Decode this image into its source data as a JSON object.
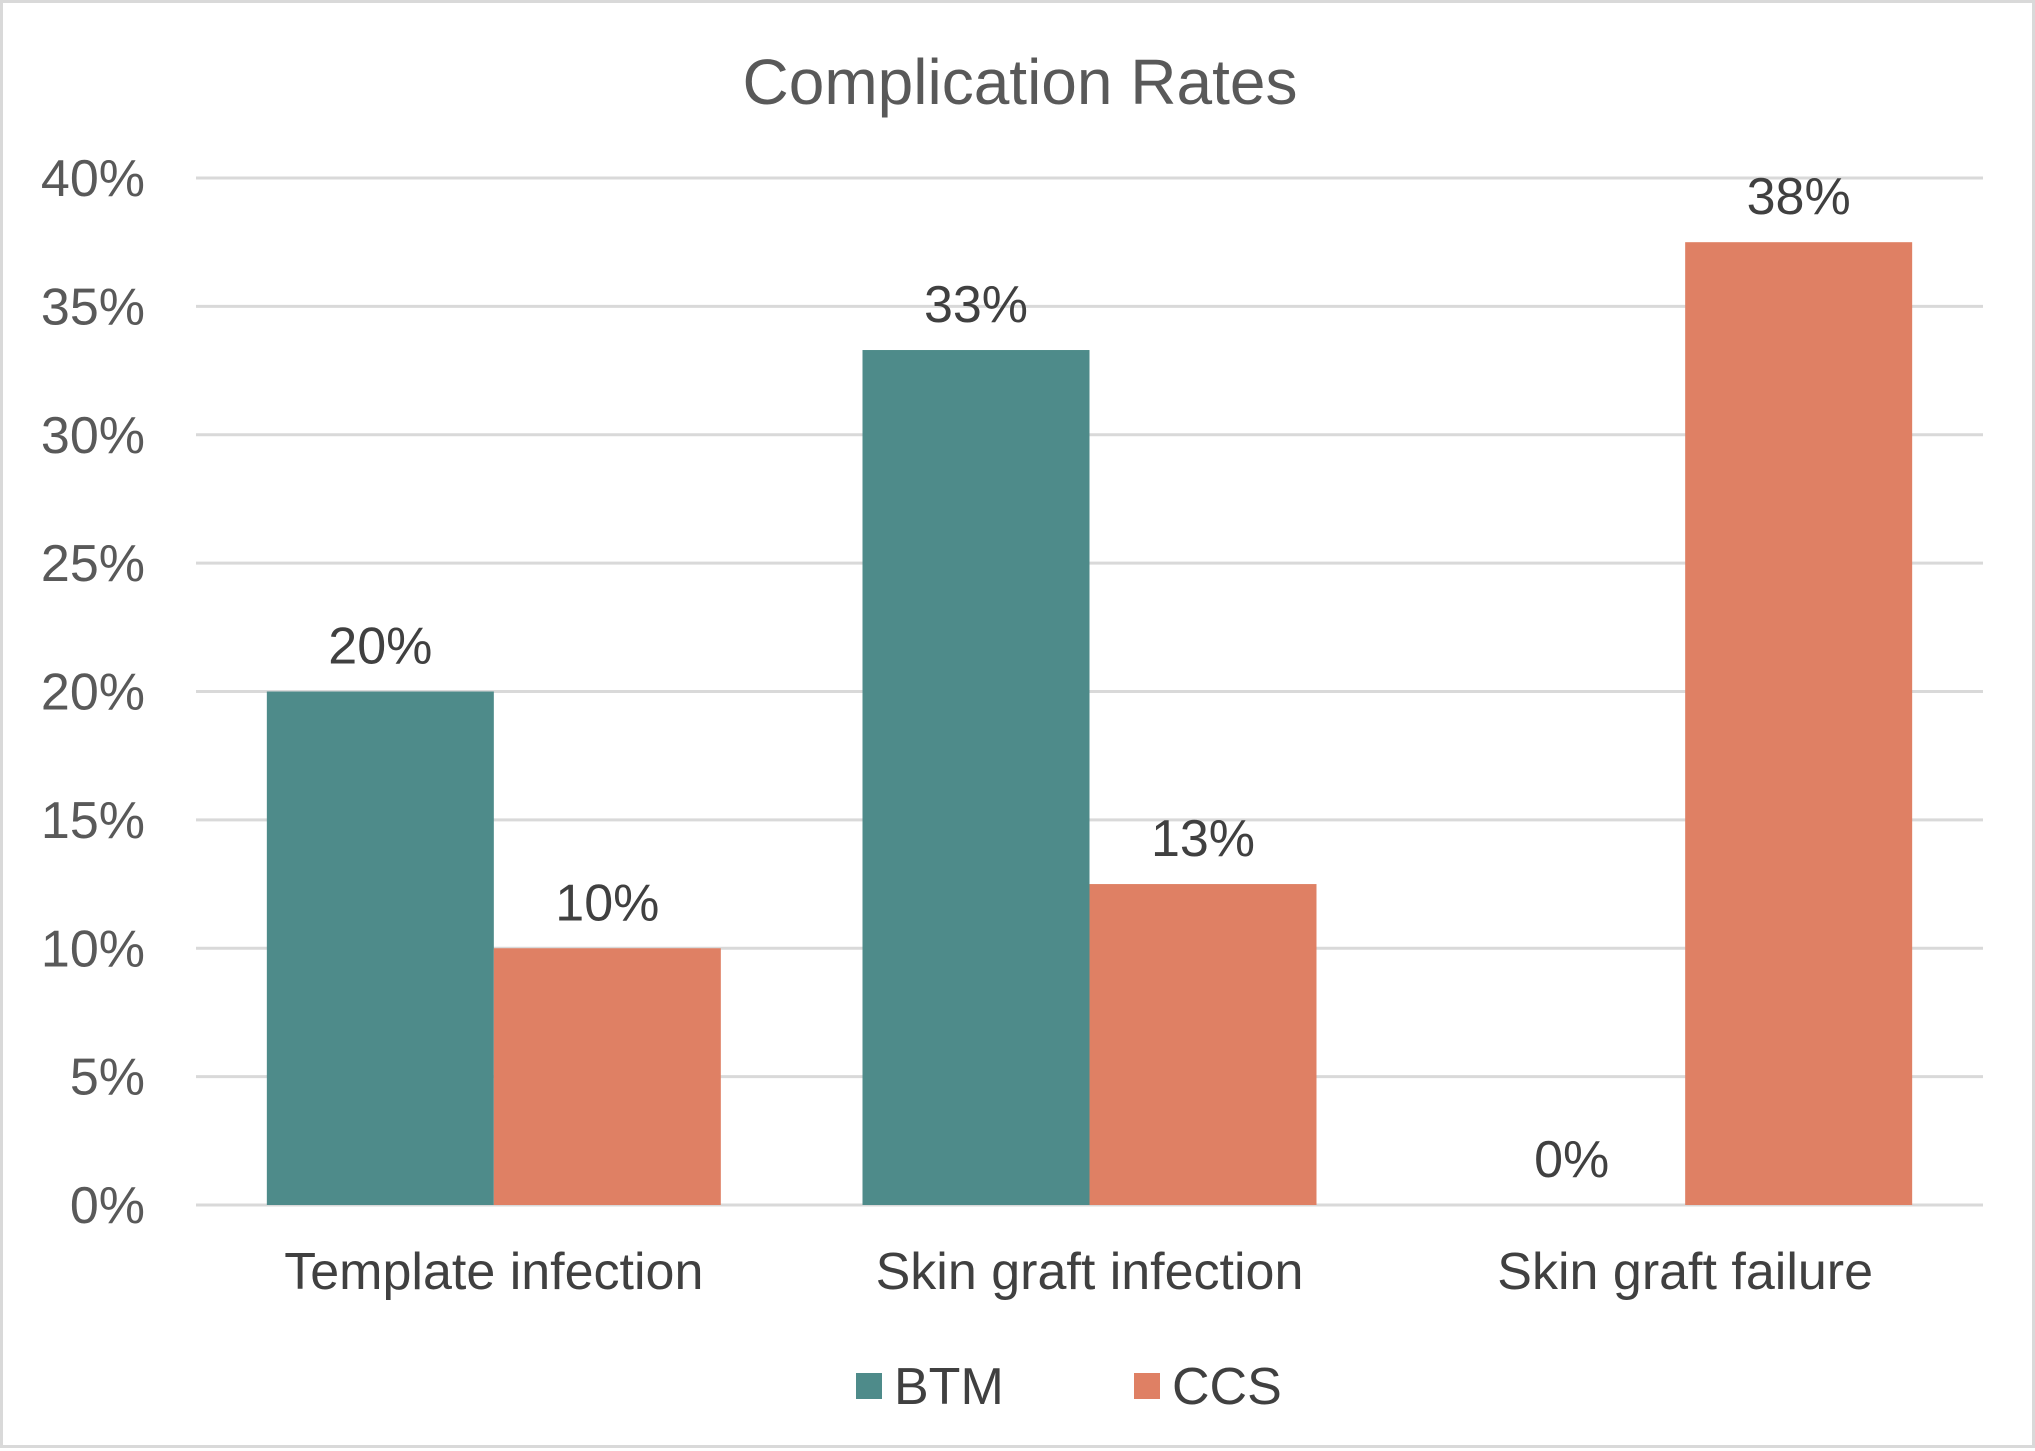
{
  "chart_data": {
    "type": "bar",
    "title": "Complication Rates",
    "categories": [
      "Template infection",
      "Skin graft infection",
      "Skin graft failure"
    ],
    "series": [
      {
        "name": "BTM",
        "color": "#4e8b8a",
        "values": [
          20,
          33.3,
          0
        ],
        "labels": [
          "20%",
          "33%",
          "0%"
        ]
      },
      {
        "name": "CCS",
        "color": "#df8064",
        "values": [
          10,
          12.5,
          37.5
        ],
        "labels": [
          "10%",
          "13%",
          "38%"
        ]
      }
    ],
    "ylim": [
      0,
      40
    ],
    "yticks": [
      0,
      5,
      10,
      15,
      20,
      25,
      30,
      35,
      40
    ],
    "ytick_labels": [
      "0%",
      "5%",
      "10%",
      "15%",
      "20%",
      "25%",
      "30%",
      "35%",
      "40%"
    ],
    "xlabel": "",
    "ylabel": "",
    "grid": true,
    "legend_position": "bottom"
  }
}
